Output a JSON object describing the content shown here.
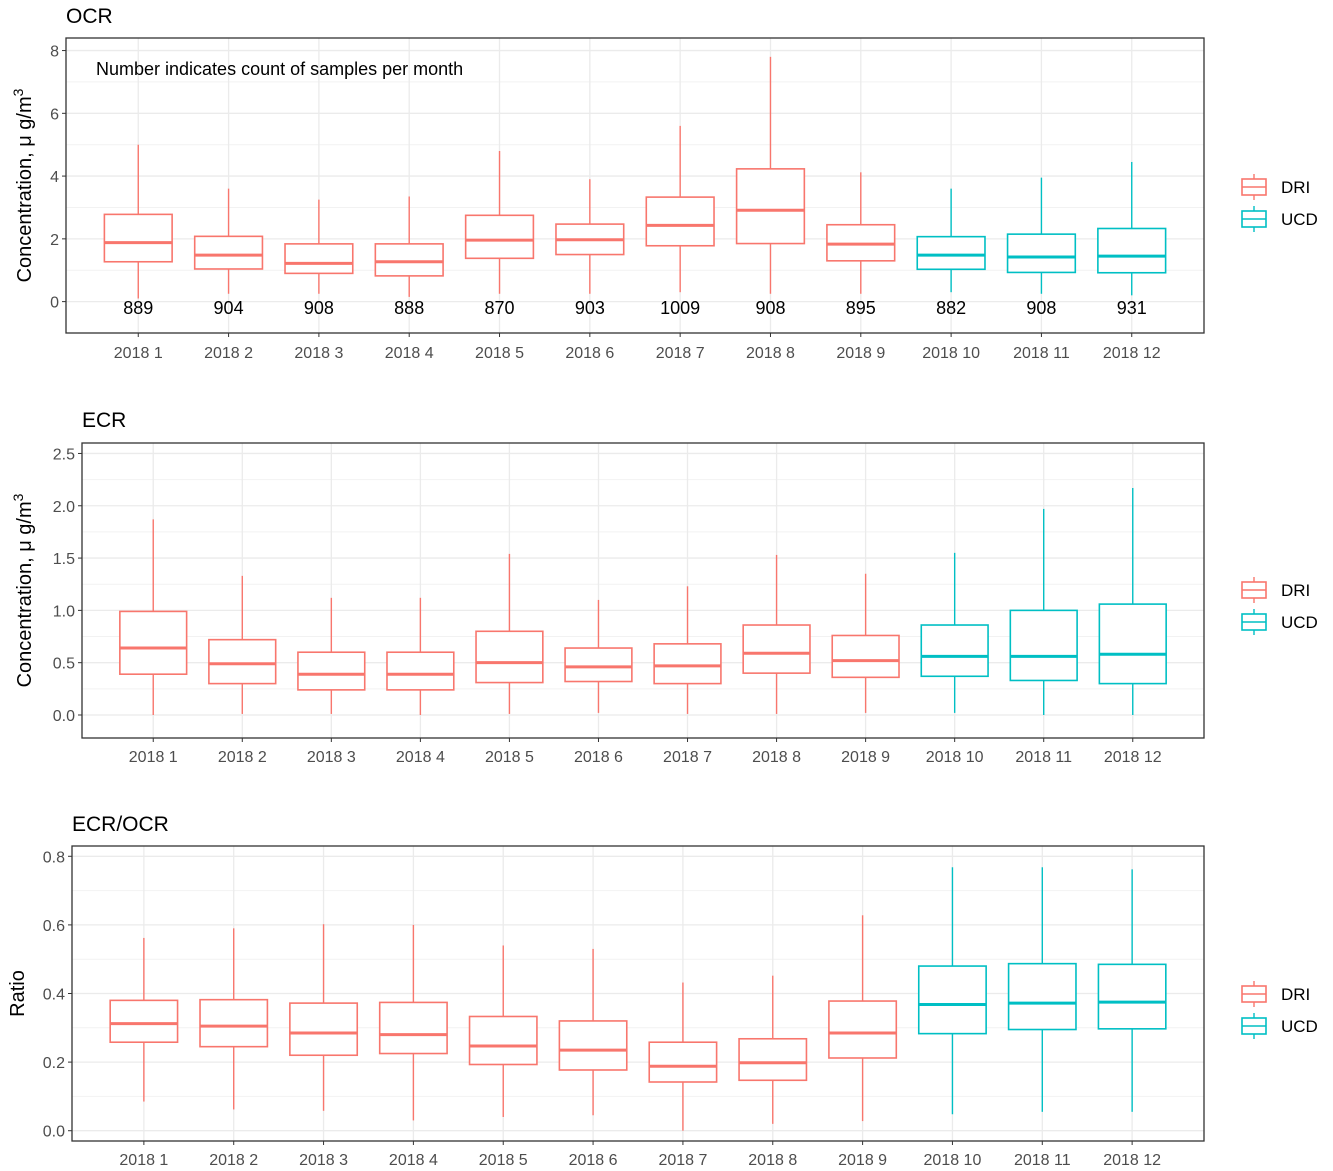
{
  "colors": {
    "DRI": "#F8766D",
    "UCD": "#00BFC4"
  },
  "legend": [
    {
      "key": "DRI",
      "label": "DRI"
    },
    {
      "key": "UCD",
      "label": "UCD"
    }
  ],
  "chart_data": [
    {
      "type": "box",
      "title": "OCR",
      "ylabel_main": "Concentration, μ g/m",
      "ylabel_sup": "3",
      "ylim": [
        -1,
        8.4
      ],
      "yticks": [
        0,
        2,
        4,
        6,
        8
      ],
      "ytick_labels": [
        "0",
        "2",
        "4",
        "6",
        "8"
      ],
      "annotation": "Number indicates count of samples per month",
      "categories": [
        "2018 1",
        "2018 2",
        "2018 3",
        "2018 4",
        "2018 5",
        "2018 6",
        "2018 7",
        "2018 8",
        "2018 9",
        "2018 10",
        "2018 11",
        "2018 12"
      ],
      "counts": [
        "889",
        "904",
        "908",
        "888",
        "870",
        "903",
        "1009",
        "908",
        "895",
        "882",
        "908",
        "931"
      ],
      "groups": [
        "DRI",
        "DRI",
        "DRI",
        "DRI",
        "DRI",
        "DRI",
        "DRI",
        "DRI",
        "DRI",
        "UCD",
        "UCD",
        "UCD"
      ],
      "boxes": [
        {
          "min": 0.1,
          "q1": 1.27,
          "median": 1.88,
          "q3": 2.78,
          "max": 5.0
        },
        {
          "min": 0.25,
          "q1": 1.04,
          "median": 1.48,
          "q3": 2.08,
          "max": 3.6
        },
        {
          "min": 0.25,
          "q1": 0.9,
          "median": 1.22,
          "q3": 1.84,
          "max": 3.25
        },
        {
          "min": 0.15,
          "q1": 0.82,
          "median": 1.27,
          "q3": 1.84,
          "max": 3.35
        },
        {
          "min": 0.25,
          "q1": 1.38,
          "median": 1.96,
          "q3": 2.75,
          "max": 4.8
        },
        {
          "min": 0.25,
          "q1": 1.5,
          "median": 1.97,
          "q3": 2.47,
          "max": 3.9
        },
        {
          "min": 0.3,
          "q1": 1.78,
          "median": 2.43,
          "q3": 3.33,
          "max": 5.6
        },
        {
          "min": 0.25,
          "q1": 1.85,
          "median": 2.91,
          "q3": 4.23,
          "max": 7.8
        },
        {
          "min": 0.25,
          "q1": 1.3,
          "median": 1.83,
          "q3": 2.45,
          "max": 4.12
        },
        {
          "min": 0.3,
          "q1": 1.03,
          "median": 1.48,
          "q3": 2.07,
          "max": 3.6
        },
        {
          "min": 0.25,
          "q1": 0.93,
          "median": 1.42,
          "q3": 2.15,
          "max": 3.95
        },
        {
          "min": 0.2,
          "q1": 0.92,
          "median": 1.45,
          "q3": 2.33,
          "max": 4.45
        }
      ]
    },
    {
      "type": "box",
      "title": "ECR",
      "ylabel_main": "Concentration, μ g/m",
      "ylabel_sup": "3",
      "ylim": [
        -0.22,
        2.6
      ],
      "yticks": [
        0,
        0.5,
        1.0,
        1.5,
        2.0,
        2.5
      ],
      "ytick_labels": [
        "0.0",
        "0.5",
        "1.0",
        "1.5",
        "2.0",
        "2.5"
      ],
      "categories": [
        "2018 1",
        "2018 2",
        "2018 3",
        "2018 4",
        "2018 5",
        "2018 6",
        "2018 7",
        "2018 8",
        "2018 9",
        "2018 10",
        "2018 11",
        "2018 12"
      ],
      "groups": [
        "DRI",
        "DRI",
        "DRI",
        "DRI",
        "DRI",
        "DRI",
        "DRI",
        "DRI",
        "DRI",
        "UCD",
        "UCD",
        "UCD"
      ],
      "boxes": [
        {
          "min": 0.0,
          "q1": 0.39,
          "median": 0.64,
          "q3": 0.99,
          "max": 1.87
        },
        {
          "min": 0.01,
          "q1": 0.3,
          "median": 0.49,
          "q3": 0.72,
          "max": 1.33
        },
        {
          "min": 0.01,
          "q1": 0.24,
          "median": 0.39,
          "q3": 0.6,
          "max": 1.12
        },
        {
          "min": 0.0,
          "q1": 0.24,
          "median": 0.39,
          "q3": 0.6,
          "max": 1.12
        },
        {
          "min": 0.01,
          "q1": 0.31,
          "median": 0.5,
          "q3": 0.8,
          "max": 1.54
        },
        {
          "min": 0.02,
          "q1": 0.32,
          "median": 0.46,
          "q3": 0.64,
          "max": 1.1
        },
        {
          "min": 0.01,
          "q1": 0.3,
          "median": 0.47,
          "q3": 0.68,
          "max": 1.23
        },
        {
          "min": 0.01,
          "q1": 0.4,
          "median": 0.59,
          "q3": 0.86,
          "max": 1.53
        },
        {
          "min": 0.02,
          "q1": 0.36,
          "median": 0.52,
          "q3": 0.76,
          "max": 1.35
        },
        {
          "min": 0.02,
          "q1": 0.37,
          "median": 0.56,
          "q3": 0.86,
          "max": 1.55
        },
        {
          "min": 0.0,
          "q1": 0.33,
          "median": 0.56,
          "q3": 1.0,
          "max": 1.97
        },
        {
          "min": 0.0,
          "q1": 0.3,
          "median": 0.58,
          "q3": 1.06,
          "max": 2.17
        }
      ]
    },
    {
      "type": "box",
      "title": "ECR/OCR",
      "ylabel_main": "Ratio",
      "ylabel_sup": "",
      "ylim": [
        -0.03,
        0.83
      ],
      "yticks": [
        0,
        0.2,
        0.4,
        0.6,
        0.8
      ],
      "ytick_labels": [
        "0.0",
        "0.2",
        "0.4",
        "0.6",
        "0.8"
      ],
      "categories": [
        "2018 1",
        "2018 2",
        "2018 3",
        "2018 4",
        "2018 5",
        "2018 6",
        "2018 7",
        "2018 8",
        "2018 9",
        "2018 10",
        "2018 11",
        "2018 12"
      ],
      "groups": [
        "DRI",
        "DRI",
        "DRI",
        "DRI",
        "DRI",
        "DRI",
        "DRI",
        "DRI",
        "DRI",
        "UCD",
        "UCD",
        "UCD"
      ],
      "boxes": [
        {
          "min": 0.085,
          "q1": 0.258,
          "median": 0.312,
          "q3": 0.38,
          "max": 0.562
        },
        {
          "min": 0.062,
          "q1": 0.245,
          "median": 0.305,
          "q3": 0.382,
          "max": 0.59
        },
        {
          "min": 0.058,
          "q1": 0.22,
          "median": 0.285,
          "q3": 0.372,
          "max": 0.602
        },
        {
          "min": 0.03,
          "q1": 0.225,
          "median": 0.28,
          "q3": 0.374,
          "max": 0.6
        },
        {
          "min": 0.04,
          "q1": 0.193,
          "median": 0.247,
          "q3": 0.333,
          "max": 0.54
        },
        {
          "min": 0.045,
          "q1": 0.177,
          "median": 0.235,
          "q3": 0.32,
          "max": 0.53
        },
        {
          "min": 0.0,
          "q1": 0.142,
          "median": 0.188,
          "q3": 0.258,
          "max": 0.432
        },
        {
          "min": 0.02,
          "q1": 0.147,
          "median": 0.198,
          "q3": 0.268,
          "max": 0.452
        },
        {
          "min": 0.028,
          "q1": 0.212,
          "median": 0.285,
          "q3": 0.378,
          "max": 0.628
        },
        {
          "min": 0.048,
          "q1": 0.283,
          "median": 0.368,
          "q3": 0.48,
          "max": 0.768
        },
        {
          "min": 0.055,
          "q1": 0.295,
          "median": 0.372,
          "q3": 0.487,
          "max": 0.768
        },
        {
          "min": 0.055,
          "q1": 0.297,
          "median": 0.375,
          "q3": 0.485,
          "max": 0.762
        }
      ]
    }
  ]
}
